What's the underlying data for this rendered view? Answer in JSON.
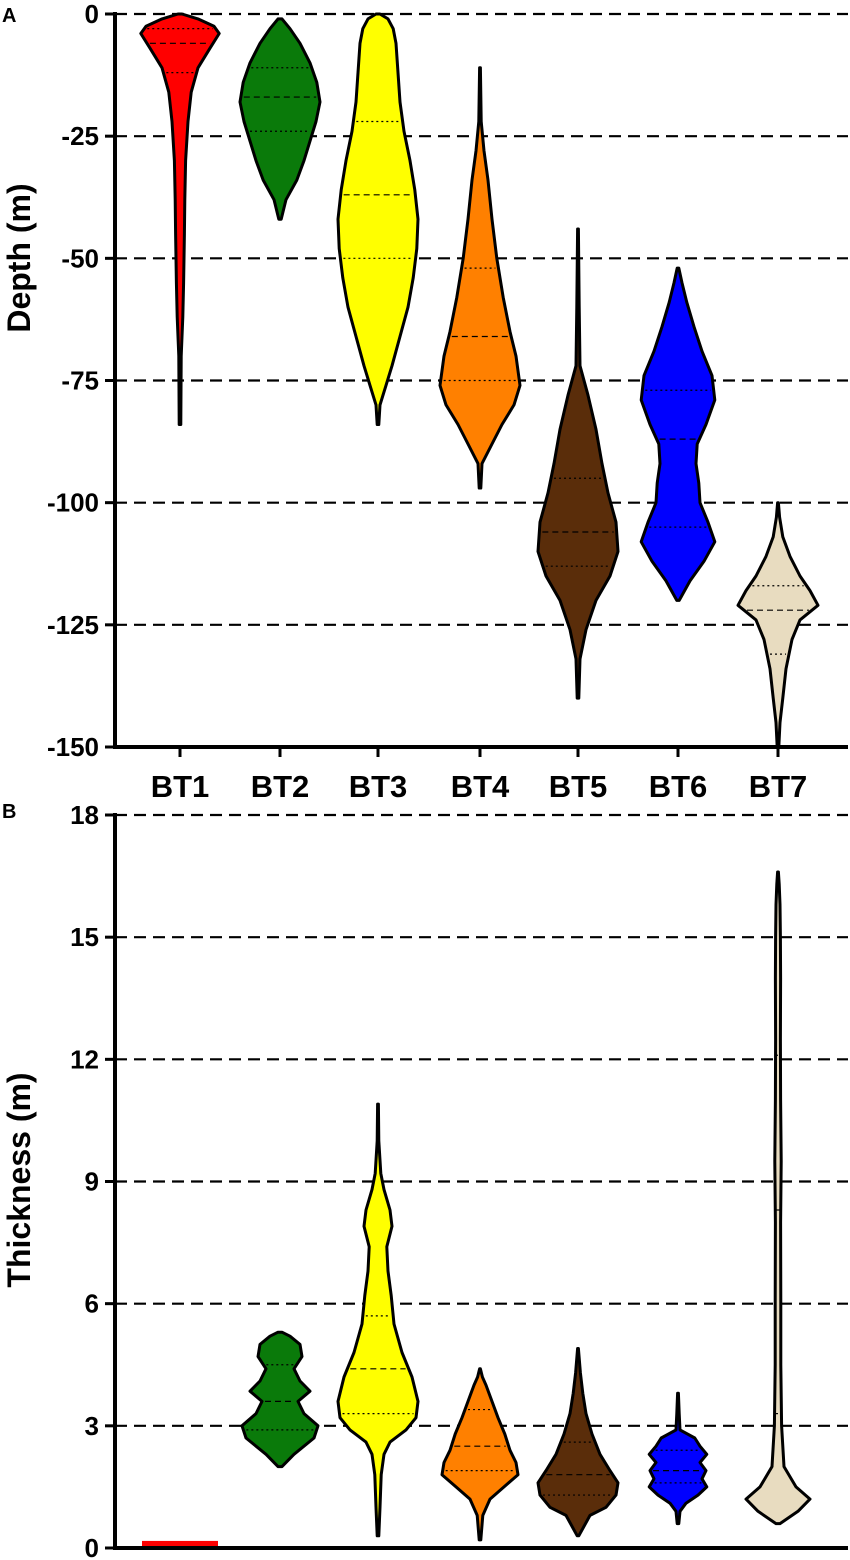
{
  "chart_data": [
    {
      "panel_label": "A",
      "type": "violin",
      "ylabel": "Depth (m)",
      "ylim": [
        -150,
        0
      ],
      "yticks": [
        0,
        -25,
        -50,
        -75,
        -100,
        -125,
        -150
      ],
      "ytick_labels": [
        "0",
        "-25",
        "-50",
        "-75",
        "-100",
        "-125",
        "-150"
      ],
      "grid": "horizontal dashed at each tick",
      "categories": [
        "BT1",
        "BT2",
        "BT3",
        "BT4",
        "BT5",
        "BT6",
        "BT7"
      ],
      "series": [
        {
          "category": "BT1",
          "color": "#ff0000",
          "min": -84,
          "max": -3,
          "q1": -12,
          "median": -6,
          "q3": -3,
          "profile": [
            [
              -84,
              0.02
            ],
            [
              -70,
              0.03
            ],
            [
              -62,
              0.07
            ],
            [
              -55,
              0.09
            ],
            [
              -45,
              0.11
            ],
            [
              -38,
              0.12
            ],
            [
              -30,
              0.14
            ],
            [
              -22,
              0.2
            ],
            [
              -16,
              0.28
            ],
            [
              -11,
              0.45
            ],
            [
              -7,
              0.75
            ],
            [
              -4,
              0.98
            ],
            [
              -2.5,
              0.85
            ],
            [
              -1,
              0.45
            ],
            [
              0,
              0.05
            ]
          ]
        },
        {
          "category": "BT2",
          "color": "#0a7a0a",
          "min": -42,
          "max": -1,
          "q1": -24,
          "median": -17,
          "q3": -11,
          "profile": [
            [
              -42,
              0.03
            ],
            [
              -38,
              0.15
            ],
            [
              -34,
              0.42
            ],
            [
              -30,
              0.6
            ],
            [
              -26,
              0.75
            ],
            [
              -22,
              0.9
            ],
            [
              -18,
              1.0
            ],
            [
              -14,
              0.92
            ],
            [
              -10,
              0.75
            ],
            [
              -6,
              0.5
            ],
            [
              -3,
              0.25
            ],
            [
              -1,
              0.05
            ]
          ]
        },
        {
          "category": "BT3",
          "color": "#ffff00",
          "min": -84,
          "max": 0,
          "q1": -50,
          "median": -37,
          "q3": -22,
          "profile": [
            [
              -84,
              0.02
            ],
            [
              -80,
              0.05
            ],
            [
              -76,
              0.2
            ],
            [
              -72,
              0.35
            ],
            [
              -66,
              0.55
            ],
            [
              -60,
              0.75
            ],
            [
              -54,
              0.88
            ],
            [
              -48,
              0.97
            ],
            [
              -42,
              1.0
            ],
            [
              -36,
              0.92
            ],
            [
              -30,
              0.8
            ],
            [
              -24,
              0.65
            ],
            [
              -18,
              0.55
            ],
            [
              -12,
              0.5
            ],
            [
              -6,
              0.45
            ],
            [
              -3,
              0.38
            ],
            [
              -1,
              0.25
            ],
            [
              0,
              0.05
            ]
          ]
        },
        {
          "category": "BT4",
          "color": "#ff8000",
          "min": -97,
          "max": -11,
          "q1": -75,
          "median": -66,
          "q3": -52,
          "profile": [
            [
              -97,
              0.02
            ],
            [
              -92,
              0.05
            ],
            [
              -88,
              0.3
            ],
            [
              -84,
              0.55
            ],
            [
              -80,
              0.85
            ],
            [
              -76,
              1.0
            ],
            [
              -70,
              0.9
            ],
            [
              -65,
              0.75
            ],
            [
              -58,
              0.58
            ],
            [
              -50,
              0.42
            ],
            [
              -42,
              0.3
            ],
            [
              -34,
              0.2
            ],
            [
              -28,
              0.1
            ],
            [
              -22,
              0.03
            ],
            [
              -11,
              0.01
            ]
          ]
        },
        {
          "category": "BT5",
          "color": "#5a2d0a",
          "min": -140,
          "max": -44,
          "q1": -113,
          "median": -106,
          "q3": -95,
          "profile": [
            [
              -140,
              0.02
            ],
            [
              -132,
              0.05
            ],
            [
              -126,
              0.2
            ],
            [
              -120,
              0.45
            ],
            [
              -115,
              0.8
            ],
            [
              -110,
              1.0
            ],
            [
              -104,
              0.95
            ],
            [
              -98,
              0.75
            ],
            [
              -92,
              0.6
            ],
            [
              -85,
              0.45
            ],
            [
              -78,
              0.25
            ],
            [
              -72,
              0.05
            ],
            [
              -60,
              0.03
            ],
            [
              -44,
              0.01
            ]
          ]
        },
        {
          "category": "BT6",
          "color": "#0000ff",
          "min": -120,
          "max": -52,
          "q1": -105,
          "median": -87,
          "q3": -77,
          "profile": [
            [
              -120,
              0.03
            ],
            [
              -116,
              0.3
            ],
            [
              -112,
              0.65
            ],
            [
              -108,
              0.92
            ],
            [
              -104,
              0.75
            ],
            [
              -100,
              0.55
            ],
            [
              -96,
              0.52
            ],
            [
              -92,
              0.45
            ],
            [
              -88,
              0.48
            ],
            [
              -84,
              0.7
            ],
            [
              -79,
              0.92
            ],
            [
              -74,
              0.85
            ],
            [
              -69,
              0.6
            ],
            [
              -64,
              0.4
            ],
            [
              -59,
              0.22
            ],
            [
              -55,
              0.1
            ],
            [
              -52,
              0.02
            ]
          ]
        },
        {
          "category": "BT7",
          "color": "#e8dcc0",
          "min": -150,
          "max": -100,
          "q1": -131,
          "median": -122,
          "q3": -117,
          "profile": [
            [
              -150,
              0.02
            ],
            [
              -145,
              0.05
            ],
            [
              -140,
              0.12
            ],
            [
              -134,
              0.2
            ],
            [
              -128,
              0.35
            ],
            [
              -124,
              0.55
            ],
            [
              -121,
              1.0
            ],
            [
              -118,
              0.8
            ],
            [
              -115,
              0.55
            ],
            [
              -111,
              0.3
            ],
            [
              -107,
              0.12
            ],
            [
              -103,
              0.04
            ],
            [
              -100,
              0.01
            ]
          ]
        }
      ]
    },
    {
      "panel_label": "B",
      "type": "violin",
      "ylabel": "Thickness (m)",
      "ylim": [
        0,
        18
      ],
      "yticks": [
        0,
        3,
        6,
        9,
        12,
        15,
        18
      ],
      "ytick_labels": [
        "0",
        "3",
        "6",
        "9",
        "12",
        "15",
        "18"
      ],
      "grid": "horizontal dashed at each tick",
      "categories": [
        "BT1",
        "BT2",
        "BT3",
        "BT4",
        "BT5",
        "BT6",
        "BT7"
      ],
      "series": [
        {
          "category": "BT1",
          "color": "#ff0000",
          "shape": "flat",
          "value": 0.1
        },
        {
          "category": "BT2",
          "color": "#0a7a0a",
          "min": 2.0,
          "max": 5.3,
          "q1": 2.9,
          "median": 3.6,
          "q3": 4.5,
          "profile": [
            [
              2.0,
              0.05
            ],
            [
              2.3,
              0.35
            ],
            [
              2.7,
              0.85
            ],
            [
              3.0,
              0.95
            ],
            [
              3.3,
              0.6
            ],
            [
              3.6,
              0.45
            ],
            [
              3.85,
              0.75
            ],
            [
              4.1,
              0.5
            ],
            [
              4.4,
              0.35
            ],
            [
              4.7,
              0.55
            ],
            [
              5.0,
              0.5
            ],
            [
              5.2,
              0.25
            ],
            [
              5.3,
              0.05
            ]
          ]
        },
        {
          "category": "BT3",
          "color": "#ffff00",
          "min": 0.3,
          "max": 10.9,
          "q1": 3.3,
          "median": 4.4,
          "q3": 5.7,
          "profile": [
            [
              0.3,
              0.02
            ],
            [
              1.0,
              0.05
            ],
            [
              1.8,
              0.08
            ],
            [
              2.3,
              0.15
            ],
            [
              2.6,
              0.3
            ],
            [
              2.9,
              0.7
            ],
            [
              3.2,
              0.95
            ],
            [
              3.6,
              1.0
            ],
            [
              4.2,
              0.85
            ],
            [
              4.8,
              0.6
            ],
            [
              5.5,
              0.4
            ],
            [
              6.2,
              0.33
            ],
            [
              6.8,
              0.25
            ],
            [
              7.4,
              0.22
            ],
            [
              7.9,
              0.35
            ],
            [
              8.3,
              0.3
            ],
            [
              8.8,
              0.15
            ],
            [
              9.2,
              0.07
            ],
            [
              10.0,
              0.02
            ],
            [
              10.9,
              0.01
            ]
          ]
        },
        {
          "category": "BT4",
          "color": "#ff8000",
          "min": 0.2,
          "max": 4.4,
          "q1": 1.9,
          "median": 2.5,
          "q3": 3.4,
          "profile": [
            [
              0.2,
              0.02
            ],
            [
              0.8,
              0.07
            ],
            [
              1.2,
              0.25
            ],
            [
              1.5,
              0.6
            ],
            [
              1.8,
              0.95
            ],
            [
              2.1,
              0.9
            ],
            [
              2.4,
              0.75
            ],
            [
              2.8,
              0.62
            ],
            [
              3.2,
              0.45
            ],
            [
              3.6,
              0.3
            ],
            [
              4.0,
              0.15
            ],
            [
              4.2,
              0.06
            ],
            [
              4.4,
              0.01
            ]
          ]
        },
        {
          "category": "BT5",
          "color": "#5a2d0a",
          "min": 0.3,
          "max": 4.9,
          "q1": 1.3,
          "median": 1.8,
          "q3": 2.6,
          "profile": [
            [
              0.3,
              0.02
            ],
            [
              0.8,
              0.3
            ],
            [
              1.0,
              0.7
            ],
            [
              1.3,
              0.95
            ],
            [
              1.6,
              1.0
            ],
            [
              1.9,
              0.8
            ],
            [
              2.3,
              0.55
            ],
            [
              2.8,
              0.35
            ],
            [
              3.3,
              0.2
            ],
            [
              3.8,
              0.12
            ],
            [
              4.3,
              0.06
            ],
            [
              4.9,
              0.01
            ]
          ]
        },
        {
          "category": "BT6",
          "color": "#0000ff",
          "min": 0.6,
          "max": 3.8,
          "q1": 1.6,
          "median": 1.9,
          "q3": 2.4,
          "profile": [
            [
              0.6,
              0.02
            ],
            [
              0.9,
              0.05
            ],
            [
              1.1,
              0.2
            ],
            [
              1.3,
              0.5
            ],
            [
              1.5,
              0.72
            ],
            [
              1.7,
              0.6
            ],
            [
              1.9,
              0.7
            ],
            [
              2.1,
              0.55
            ],
            [
              2.3,
              0.72
            ],
            [
              2.5,
              0.55
            ],
            [
              2.7,
              0.42
            ],
            [
              2.9,
              0.05
            ],
            [
              3.3,
              0.03
            ],
            [
              3.8,
              0.01
            ]
          ]
        },
        {
          "category": "BT7",
          "color": "#e8dcc0",
          "min": 0.6,
          "max": 16.6,
          "q1": 3.3,
          "median": 8.3,
          "q3": 12.1,
          "profile": [
            [
              0.6,
              0.05
            ],
            [
              0.9,
              0.5
            ],
            [
              1.2,
              0.8
            ],
            [
              1.5,
              0.45
            ],
            [
              2.0,
              0.15
            ],
            [
              3.0,
              0.09
            ],
            [
              4.5,
              0.07
            ],
            [
              6.0,
              0.07
            ],
            [
              8.0,
              0.065
            ],
            [
              9.5,
              0.08
            ],
            [
              11.0,
              0.065
            ],
            [
              12.5,
              0.06
            ],
            [
              14.0,
              0.065
            ],
            [
              15.0,
              0.06
            ],
            [
              15.8,
              0.05
            ],
            [
              16.3,
              0.03
            ],
            [
              16.6,
              0.01
            ]
          ]
        }
      ]
    }
  ]
}
